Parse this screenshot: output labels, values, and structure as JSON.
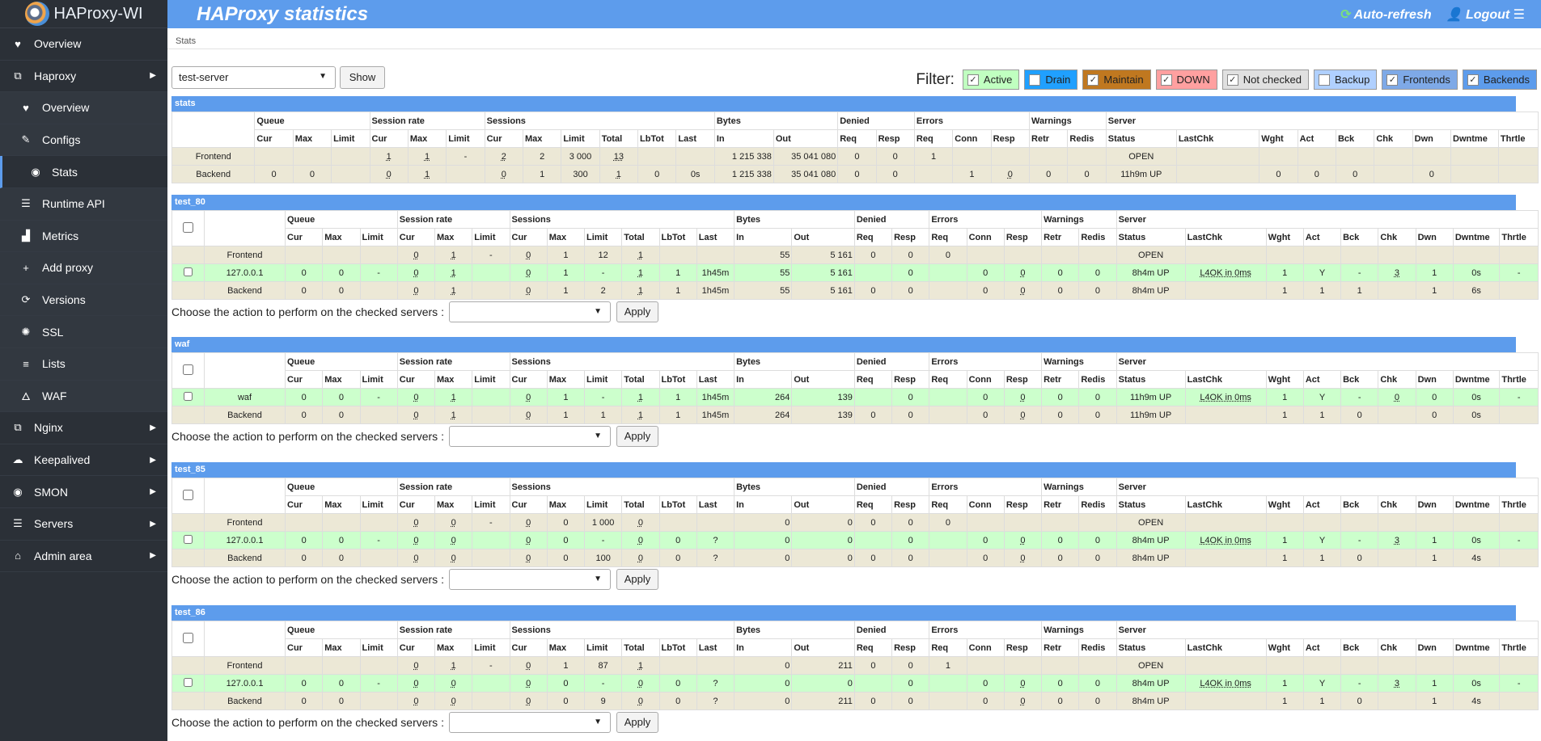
{
  "sidebar": {
    "logo_text": "HAProxy-WI",
    "items": [
      {
        "label": "Overview",
        "icon": "heart-icon",
        "type": "top"
      },
      {
        "label": "Haproxy",
        "icon": "network-icon",
        "type": "top",
        "expandable": true
      },
      {
        "label": "Overview",
        "icon": "heart-icon",
        "type": "sub"
      },
      {
        "label": "Configs",
        "icon": "edit-icon",
        "type": "sub"
      },
      {
        "label": "Stats",
        "icon": "eye-icon",
        "type": "sub",
        "active": true
      },
      {
        "label": "Runtime API",
        "icon": "server-icon",
        "type": "sub"
      },
      {
        "label": "Metrics",
        "icon": "chart-icon",
        "type": "sub"
      },
      {
        "label": "Add proxy",
        "icon": "plus-icon",
        "type": "sub"
      },
      {
        "label": "Versions",
        "icon": "refresh-icon",
        "type": "sub"
      },
      {
        "label": "SSL",
        "icon": "certificate-icon",
        "type": "sub"
      },
      {
        "label": "Lists",
        "icon": "list-icon",
        "type": "sub"
      },
      {
        "label": "WAF",
        "icon": "fire-icon",
        "type": "sub"
      },
      {
        "label": "Nginx",
        "icon": "network-icon",
        "type": "top",
        "expandable": true
      },
      {
        "label": "Keepalived",
        "icon": "cloud-icon",
        "type": "top",
        "expandable": true
      },
      {
        "label": "SMON",
        "icon": "eye-icon",
        "type": "top",
        "expandable": true
      },
      {
        "label": "Servers",
        "icon": "server-icon",
        "type": "top",
        "expandable": true
      },
      {
        "label": "Admin area",
        "icon": "admin-icon",
        "type": "top",
        "expandable": true
      }
    ]
  },
  "header": {
    "title": "HAProxy statistics",
    "auto_refresh": "Auto-refresh",
    "logout": "Logout"
  },
  "breadcrumb": "Stats",
  "controls": {
    "server_select_value": "test-server",
    "show_label": "Show",
    "filter_label": "Filter:",
    "filters": [
      {
        "label": "Active",
        "checked": true,
        "color": "#c0ffc0"
      },
      {
        "label": "Drain",
        "checked": false,
        "color": "#20a0ff"
      },
      {
        "label": "Maintain",
        "checked": true,
        "color": "#c07820"
      },
      {
        "label": "DOWN",
        "checked": true,
        "color": "#ffa0a0"
      },
      {
        "label": "Not checked",
        "checked": true,
        "color": "#e0e0e0"
      },
      {
        "label": "Backup",
        "checked": false,
        "color": "#b0d0ff"
      },
      {
        "label": "Frontends",
        "checked": true,
        "color": "#7ea9e7"
      },
      {
        "label": "Backends",
        "checked": true,
        "color": "#5d9cec"
      }
    ]
  },
  "table_headers": {
    "groups": [
      "Queue",
      "Session rate",
      "Sessions",
      "Bytes",
      "Denied",
      "Errors",
      "Warnings",
      "Server"
    ],
    "columns": [
      "Cur",
      "Max",
      "Limit",
      "Cur",
      "Max",
      "Limit",
      "Cur",
      "Max",
      "Limit",
      "Total",
      "LbTot",
      "Last",
      "In",
      "Out",
      "Req",
      "Resp",
      "Req",
      "Conn",
      "Resp",
      "Retr",
      "Redis",
      "Status",
      "LastChk",
      "Wght",
      "Act",
      "Bck",
      "Chk",
      "Dwn",
      "Dwntme",
      "Thrtle"
    ]
  },
  "action_text": "Choose the action to perform on the checked servers :",
  "apply_label": "Apply",
  "proxies": [
    {
      "name": "stats",
      "checkable": false,
      "rows": [
        {
          "kind": "frontend",
          "name": "Frontend",
          "cells": [
            "",
            "",
            "",
            "1",
            "1",
            "-",
            "2",
            "2",
            "3 000",
            "13",
            "",
            "",
            "1 215 338",
            "35 041 080",
            "0",
            "0",
            "1",
            "",
            "",
            "",
            "",
            "OPEN",
            "",
            "",
            "",
            "",
            "",
            "",
            "",
            ""
          ]
        },
        {
          "kind": "backend",
          "name": "Backend",
          "cells": [
            "0",
            "0",
            "",
            "0",
            "1",
            "",
            "0",
            "1",
            "300",
            "1",
            "0",
            "0s",
            "1 215 338",
            "35 041 080",
            "0",
            "0",
            "",
            "1",
            "0",
            "0",
            "0",
            "11h9m UP",
            "",
            "0",
            "0",
            "0",
            "",
            "0",
            "",
            ""
          ]
        }
      ]
    },
    {
      "name": "test_80",
      "checkable": true,
      "rows": [
        {
          "kind": "frontend",
          "name": "Frontend",
          "cells": [
            "",
            "",
            "",
            "0",
            "1",
            "-",
            "0",
            "1",
            "12",
            "1",
            "",
            "",
            "55",
            "5 161",
            "0",
            "0",
            "0",
            "",
            "",
            "",
            "",
            "OPEN",
            "",
            "",
            "",
            "",
            "",
            "",
            "",
            ""
          ]
        },
        {
          "kind": "active",
          "name": "127.0.0.1",
          "cells": [
            "0",
            "0",
            "-",
            "0",
            "1",
            "",
            "0",
            "1",
            "-",
            "1",
            "1",
            "1h45m",
            "55",
            "5 161",
            "",
            "0",
            "",
            "0",
            "0",
            "0",
            "0",
            "8h4m UP",
            "L4OK in 0ms",
            "1",
            "Y",
            "-",
            "3",
            "1",
            "0s",
            "-"
          ]
        },
        {
          "kind": "backend",
          "name": "Backend",
          "cells": [
            "0",
            "0",
            "",
            "0",
            "1",
            "",
            "0",
            "1",
            "2",
            "1",
            "1",
            "1h45m",
            "55",
            "5 161",
            "0",
            "0",
            "",
            "0",
            "0",
            "0",
            "0",
            "8h4m UP",
            "",
            "1",
            "1",
            "1",
            "",
            "1",
            "6s",
            ""
          ]
        }
      ]
    },
    {
      "name": "waf",
      "checkable": true,
      "rows": [
        {
          "kind": "active",
          "name": "waf",
          "cells": [
            "0",
            "0",
            "-",
            "0",
            "1",
            "",
            "0",
            "1",
            "-",
            "1",
            "1",
            "1h45m",
            "264",
            "139",
            "",
            "0",
            "",
            "0",
            "0",
            "0",
            "0",
            "11h9m UP",
            "L4OK in 0ms",
            "1",
            "Y",
            "-",
            "0",
            "0",
            "0s",
            "-"
          ]
        },
        {
          "kind": "backend",
          "name": "Backend",
          "cells": [
            "0",
            "0",
            "",
            "0",
            "1",
            "",
            "0",
            "1",
            "1",
            "1",
            "1",
            "1h45m",
            "264",
            "139",
            "0",
            "0",
            "",
            "0",
            "0",
            "0",
            "0",
            "11h9m UP",
            "",
            "1",
            "1",
            "0",
            "",
            "0",
            "0s",
            ""
          ]
        }
      ]
    },
    {
      "name": "test_85",
      "checkable": true,
      "rows": [
        {
          "kind": "frontend",
          "name": "Frontend",
          "cells": [
            "",
            "",
            "",
            "0",
            "0",
            "-",
            "0",
            "0",
            "1 000",
            "0",
            "",
            "",
            "0",
            "0",
            "0",
            "0",
            "0",
            "",
            "",
            "",
            "",
            "OPEN",
            "",
            "",
            "",
            "",
            "",
            "",
            "",
            ""
          ]
        },
        {
          "kind": "active",
          "name": "127.0.0.1",
          "cells": [
            "0",
            "0",
            "-",
            "0",
            "0",
            "",
            "0",
            "0",
            "-",
            "0",
            "0",
            "?",
            "0",
            "0",
            "",
            "0",
            "",
            "0",
            "0",
            "0",
            "0",
            "8h4m UP",
            "L4OK in 0ms",
            "1",
            "Y",
            "-",
            "3",
            "1",
            "0s",
            "-"
          ]
        },
        {
          "kind": "backend",
          "name": "Backend",
          "cells": [
            "0",
            "0",
            "",
            "0",
            "0",
            "",
            "0",
            "0",
            "100",
            "0",
            "0",
            "?",
            "0",
            "0",
            "0",
            "0",
            "",
            "0",
            "0",
            "0",
            "0",
            "8h4m UP",
            "",
            "1",
            "1",
            "0",
            "",
            "1",
            "4s",
            ""
          ]
        }
      ]
    },
    {
      "name": "test_86",
      "checkable": true,
      "rows": [
        {
          "kind": "frontend",
          "name": "Frontend",
          "cells": [
            "",
            "",
            "",
            "0",
            "1",
            "-",
            "0",
            "1",
            "87",
            "1",
            "",
            "",
            "0",
            "211",
            "0",
            "0",
            "1",
            "",
            "",
            "",
            "",
            "OPEN",
            "",
            "",
            "",
            "",
            "",
            "",
            "",
            ""
          ]
        },
        {
          "kind": "active",
          "name": "127.0.0.1",
          "cells": [
            "0",
            "0",
            "-",
            "0",
            "0",
            "",
            "0",
            "0",
            "-",
            "0",
            "0",
            "?",
            "0",
            "0",
            "",
            "0",
            "",
            "0",
            "0",
            "0",
            "0",
            "8h4m UP",
            "L4OK in 0ms",
            "1",
            "Y",
            "-",
            "3",
            "1",
            "0s",
            "-"
          ]
        },
        {
          "kind": "backend",
          "name": "Backend",
          "cells": [
            "0",
            "0",
            "",
            "0",
            "0",
            "",
            "0",
            "0",
            "9",
            "0",
            "0",
            "?",
            "0",
            "211",
            "0",
            "0",
            "",
            "0",
            "0",
            "0",
            "0",
            "8h4m UP",
            "",
            "1",
            "1",
            "0",
            "",
            "1",
            "4s",
            ""
          ]
        }
      ]
    }
  ]
}
